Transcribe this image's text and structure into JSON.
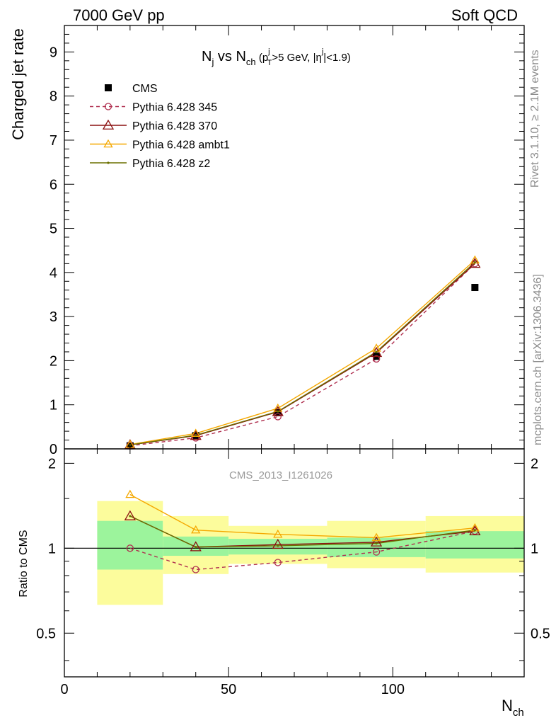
{
  "header": {
    "energy_label": "7000 GeV pp",
    "process_label": "Soft QCD"
  },
  "side_labels": {
    "rivet": "Rivet 3.1.10, ≥ 2.1M events",
    "mcplots": "mcplots.cern.ch [arXiv:1306.3436]"
  },
  "chart_data": [
    {
      "type": "line",
      "panel": "main",
      "title": {
        "N": "N",
        "N_sub": "j",
        "vs": " vs ",
        "Nch": "N",
        "Nch_sub": "ch",
        "open": " (p",
        "pT_sup": "j",
        "pT_sub": "T",
        "cut": ">5 GeV, |η",
        "eta_sup": "j",
        "close": "|<1.9)"
      },
      "ylabel": "Charged jet rate",
      "xlabel": {
        "base": "N",
        "sub": "ch"
      },
      "watermark": "CMS_2013_I1261026",
      "xlim": [
        0,
        140
      ],
      "ylim": [
        0,
        9.6
      ],
      "yticks": [
        0,
        1,
        2,
        3,
        4,
        5,
        6,
        7,
        8,
        9
      ],
      "xticks": [
        0,
        50,
        100
      ],
      "legend_position": "top-left",
      "series": [
        {
          "name": "CMS",
          "style": "marker-square",
          "color": "#000000",
          "x": [
            20,
            40,
            65,
            95,
            125
          ],
          "y": [
            0.07,
            0.3,
            0.82,
            2.1,
            3.66
          ]
        },
        {
          "name": "Pythia 6.428 345",
          "style": "dashed-circle",
          "color": "#b03050",
          "x": [
            20,
            40,
            65,
            95,
            125
          ],
          "y": [
            0.07,
            0.25,
            0.73,
            2.04,
            4.2
          ]
        },
        {
          "name": "Pythia 6.428 370",
          "style": "solid-triangle",
          "color": "#8b1010",
          "x": [
            20,
            40,
            65,
            95,
            125
          ],
          "y": [
            0.09,
            0.3,
            0.84,
            2.18,
            4.2
          ]
        },
        {
          "name": "Pythia 6.428 ambt1",
          "style": "solid-triangle",
          "color": "#f5a800",
          "x": [
            20,
            40,
            65,
            95,
            125
          ],
          "y": [
            0.1,
            0.35,
            0.92,
            2.28,
            4.28
          ]
        },
        {
          "name": "Pythia 6.428 z2",
          "style": "solid-dot",
          "color": "#6b7000",
          "x": [
            20,
            40,
            65,
            95,
            125
          ],
          "y": [
            0.09,
            0.31,
            0.85,
            2.2,
            4.23
          ]
        }
      ]
    },
    {
      "type": "line",
      "panel": "ratio",
      "ylabel": "Ratio to CMS",
      "ylim": [
        0.35,
        2.25
      ],
      "log_y": true,
      "yticks": [
        0.5,
        1,
        2
      ],
      "ytick_labels": [
        "0.5",
        "1",
        "2"
      ],
      "xticks": [
        0,
        50,
        100
      ],
      "xtick_labels": [
        "0",
        "50",
        "100"
      ],
      "bands": [
        {
          "x0": 10,
          "x1": 30,
          "inner": [
            0.84,
            1.25
          ],
          "outer": [
            0.63,
            1.47
          ]
        },
        {
          "x0": 30,
          "x1": 50,
          "inner": [
            0.94,
            1.1
          ],
          "outer": [
            0.81,
            1.3
          ]
        },
        {
          "x0": 50,
          "x1": 80,
          "inner": [
            0.95,
            1.08
          ],
          "outer": [
            0.88,
            1.2
          ]
        },
        {
          "x0": 80,
          "x1": 110,
          "inner": [
            0.93,
            1.09
          ],
          "outer": [
            0.85,
            1.25
          ]
        },
        {
          "x0": 110,
          "x1": 140,
          "inner": [
            0.92,
            1.15
          ],
          "outer": [
            0.82,
            1.3
          ]
        }
      ],
      "band_colors": {
        "inner": "#9cf49c",
        "outer": "#fcfc9c"
      },
      "series": [
        {
          "name": "Pythia 6.428 345",
          "style": "dashed-circle",
          "color": "#b03050",
          "x": [
            20,
            40,
            65,
            95,
            125
          ],
          "y": [
            1.0,
            0.84,
            0.89,
            0.97,
            1.15
          ]
        },
        {
          "name": "Pythia 6.428 370",
          "style": "solid-triangle",
          "color": "#8b1010",
          "x": [
            20,
            40,
            65,
            95,
            125
          ],
          "y": [
            1.3,
            1.01,
            1.03,
            1.05,
            1.15
          ]
        },
        {
          "name": "Pythia 6.428 ambt1",
          "style": "solid-triangle",
          "color": "#f5a800",
          "x": [
            20,
            40,
            65,
            95,
            125
          ],
          "y": [
            1.55,
            1.16,
            1.12,
            1.09,
            1.18
          ]
        },
        {
          "name": "Pythia 6.428 z2",
          "style": "solid-dot",
          "color": "#6b7000",
          "x": [
            20,
            40,
            65,
            95,
            125
          ],
          "y": [
            1.3,
            1.01,
            1.02,
            1.04,
            1.16
          ]
        }
      ]
    }
  ]
}
